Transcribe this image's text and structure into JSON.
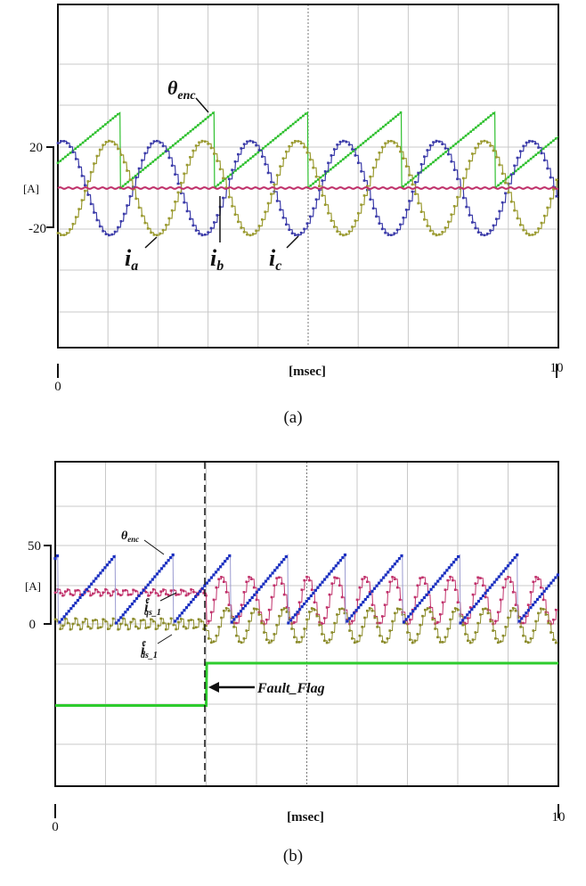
{
  "chart_data": [
    {
      "type": "line",
      "caption": "(a)",
      "xlabel": "[msec]",
      "xlim": [
        0,
        10
      ],
      "x_tick_labels": [
        "0",
        "10"
      ],
      "ylabel": "[A]",
      "y_tick_labels": [
        "20",
        "-20"
      ],
      "ylim": [
        -20,
        20
      ],
      "grid": true,
      "series": [
        {
          "name": "i_a",
          "label_main": "i",
          "label_sub": "a",
          "color": "#3a3aa8",
          "shape": "sinusoid",
          "amplitude": 23,
          "period_ms": 1.87,
          "phase_ms": 0.09
        },
        {
          "name": "i_b",
          "label_main": "i",
          "label_sub": "b",
          "color": "#c0306a",
          "shape": "flat",
          "level": 0
        },
        {
          "name": "i_c",
          "label_main": "i",
          "label_sub": "c",
          "color": "#9a9a30",
          "shape": "sinusoid",
          "amplitude": -23,
          "period_ms": 1.87,
          "phase_ms": 0.09
        },
        {
          "name": "theta_enc",
          "label_main": "θ",
          "label_sub": "enc",
          "color": "#2fc02f",
          "shape": "sawtooth",
          "peak": 37,
          "period_ms": 1.87,
          "reset_ms": 1.25
        }
      ]
    },
    {
      "type": "line",
      "caption": "(b)",
      "xlabel": "[msec]",
      "xlim": [
        0,
        10
      ],
      "x_tick_labels": [
        "0",
        "10"
      ],
      "ylabel": "[A]",
      "y_tick_labels": [
        "50",
        "0"
      ],
      "ylim": [
        0,
        50
      ],
      "grid": true,
      "fault_time_ms": 3,
      "annotation": "Fault_Flag",
      "series": [
        {
          "name": "theta_enc",
          "label_main": "θ",
          "label_sub": "enc",
          "color": "#1a2fc0",
          "shape": "sawtooth",
          "peak": 44,
          "period_ms": 1.14,
          "reset_ms": 1.2
        },
        {
          "name": "i_qs_1",
          "label_main": "i",
          "label_sup": "e",
          "label_sub": "qs_1",
          "color": "#c0306a",
          "pre_fault": {
            "mean": 20,
            "ripple": 2
          },
          "post_fault": {
            "min": 0,
            "max": 30,
            "period_ms": 0.57
          }
        },
        {
          "name": "i_ds_1",
          "label_main": "i",
          "label_sup": "e",
          "label_sub": "ds_1",
          "color": "#8a8a28",
          "pre_fault": {
            "mean": 0,
            "ripple": 3.5
          },
          "post_fault": {
            "min": -12,
            "max": 10,
            "period_ms": 0.57
          }
        },
        {
          "name": "fault_flag",
          "color": "#2ecc2e",
          "pre_fault_level": -52,
          "post_fault_level": -25
        }
      ]
    }
  ]
}
